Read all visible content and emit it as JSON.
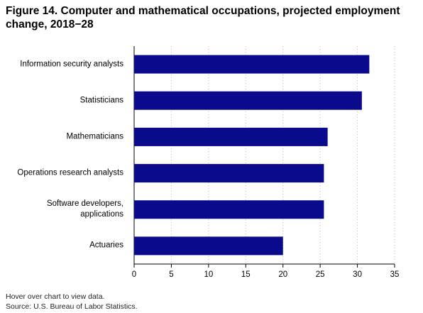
{
  "chart_data": {
    "type": "bar",
    "orientation": "horizontal",
    "title": "Figure 14. Computer and mathematical occupations, projected employment change, 2018−28",
    "categories": [
      "Information security analysts",
      "Statisticians",
      "Mathematicians",
      "Operations research analysts",
      "Software developers,\napplications",
      "Actuaries"
    ],
    "values": [
      31.6,
      30.6,
      26,
      25.5,
      25.5,
      20
    ],
    "color": "#0a0a8c",
    "xlim": [
      0,
      35
    ],
    "xticks": [
      0,
      5,
      10,
      15,
      20,
      25,
      30,
      35
    ],
    "grid": true,
    "notes": [
      "Hover over chart to view data.",
      "Source: U.S. Bureau of Labor Statistics."
    ]
  }
}
